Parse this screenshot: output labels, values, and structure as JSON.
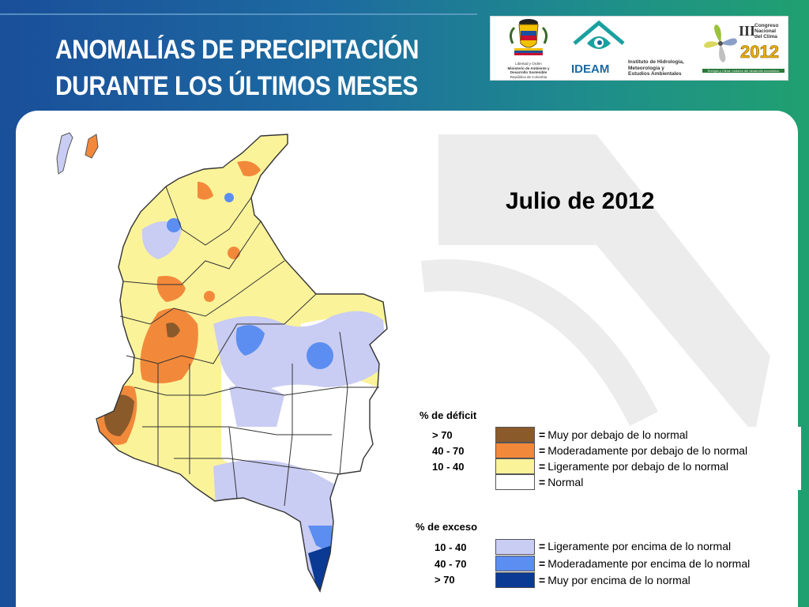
{
  "header": {
    "title_line1": "ANOMALÍAS DE PRECIPITACIÓN",
    "title_line2": "DURANTE LOS ÚLTIMOS MESES"
  },
  "logos": {
    "ministry_lines": [
      "Libertad y Orden",
      "Ministerio de Ambiente y",
      "Desarrollo Sostenible",
      "República de Colombia"
    ],
    "ideam_name": "IDEAM",
    "ideam_lines": [
      "Instituto de Hidrología,",
      "Meteorología y",
      "Estudios Ambientales"
    ],
    "congress_roman": "III",
    "congress_lines": [
      "Congreso",
      "Nacional",
      "del Clima"
    ],
    "congress_year": "2012",
    "congress_tagline": "Energía y Clima: motores del desarrollo económico"
  },
  "map": {
    "heading": "Julio de 2012",
    "colors": {
      "muy_debajo": "#8b5a2b",
      "moderado_debajo": "#f2893a",
      "ligero_debajo": "#fbf39a",
      "normal": "#ffffff",
      "ligero_encima": "#c9ccf3",
      "moderado_encima": "#5b8ef0",
      "muy_encima": "#0b3a94"
    }
  },
  "legend": {
    "deficit_title": "% de déficit",
    "deficit": [
      {
        "range": "> 70",
        "label": "Muy por debajo de lo normal",
        "color": "#8b5a2b"
      },
      {
        "range": "40 -  70",
        "label": "Moderadamente por debajo de lo normal",
        "color": "#f2893a"
      },
      {
        "range": "10 -  40",
        "label": "Ligeramente por debajo de lo normal",
        "color": "#fbf39a"
      },
      {
        "range": "",
        "label": "Normal",
        "color": "#ffffff"
      }
    ],
    "excess_title": "% de exceso",
    "excess": [
      {
        "range": "10 -  40",
        "label": "Ligeramente por encima de lo normal",
        "color": "#c9ccf3"
      },
      {
        "range": "40 -  70",
        "label": "Moderadamente por encima de lo normal",
        "color": "#5b8ef0"
      },
      {
        "range": "> 70",
        "label": "Muy por encima de lo normal",
        "color": "#0b3a94"
      }
    ],
    "eq": "="
  }
}
